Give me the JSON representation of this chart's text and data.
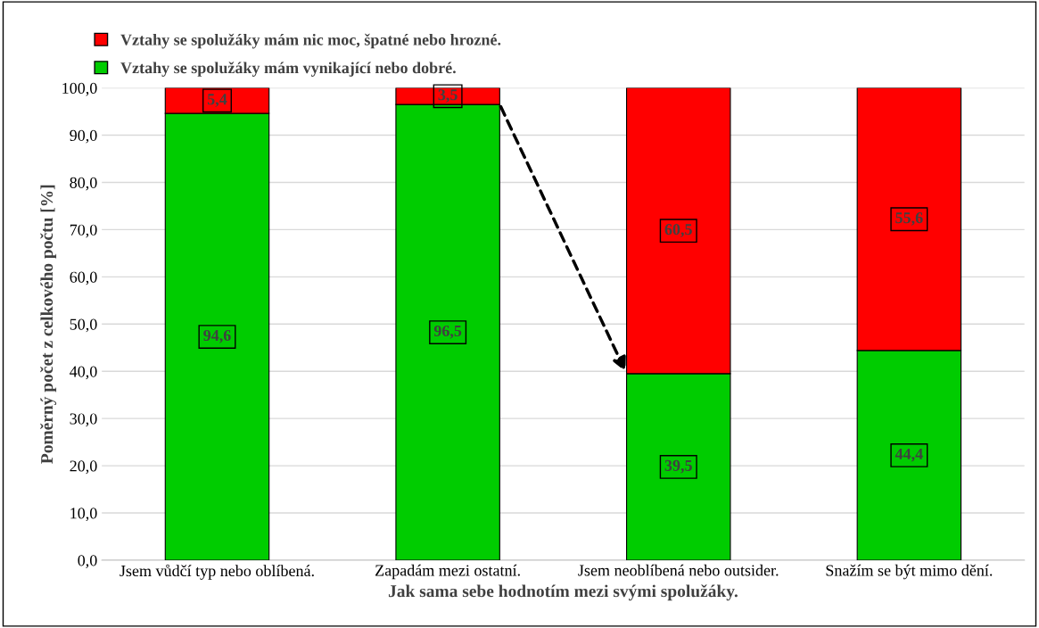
{
  "chart_data": {
    "type": "bar",
    "stacked": true,
    "xlabel": "Jak sama sebe hodnotím mezi svými spolužáky.",
    "ylabel": "Poměrný počet z celkového počtu [%]",
    "categories": [
      "Jsem vůdčí typ nebo oblíbená.",
      "Zapadám mezi ostatní.",
      "Jsem neoblíbená nebo outsider.",
      "Snažím se být mimo dění."
    ],
    "series": [
      {
        "name": "Vztahy se spolužáky mám vynikající nebo dobré.",
        "color": "#00cc00",
        "values": [
          94.6,
          96.5,
          39.5,
          44.4
        ],
        "value_labels": [
          "94,6",
          "96,5",
          "39,5",
          "44,4"
        ]
      },
      {
        "name": "Vztahy se spolužáky mám nic moc, špatné nebo hrozné.",
        "color": "#ff0000",
        "values": [
          5.4,
          3.5,
          60.5,
          55.6
        ],
        "value_labels": [
          "5,4",
          "3,5",
          "60,5",
          "55,6"
        ]
      }
    ],
    "ylim": [
      0,
      100
    ],
    "yticks": [
      {
        "value": 0,
        "label": "0,0"
      },
      {
        "value": 10,
        "label": "10,0"
      },
      {
        "value": 20,
        "label": "20,0"
      },
      {
        "value": 30,
        "label": "30,0"
      },
      {
        "value": 40,
        "label": "40,0"
      },
      {
        "value": 50,
        "label": "50,0"
      },
      {
        "value": 60,
        "label": "60,0"
      },
      {
        "value": 70,
        "label": "70,0"
      },
      {
        "value": 80,
        "label": "80,0"
      },
      {
        "value": 90,
        "label": "90,0"
      },
      {
        "value": 100,
        "label": "100,0"
      }
    ],
    "grid": "y",
    "legend": "top left"
  }
}
